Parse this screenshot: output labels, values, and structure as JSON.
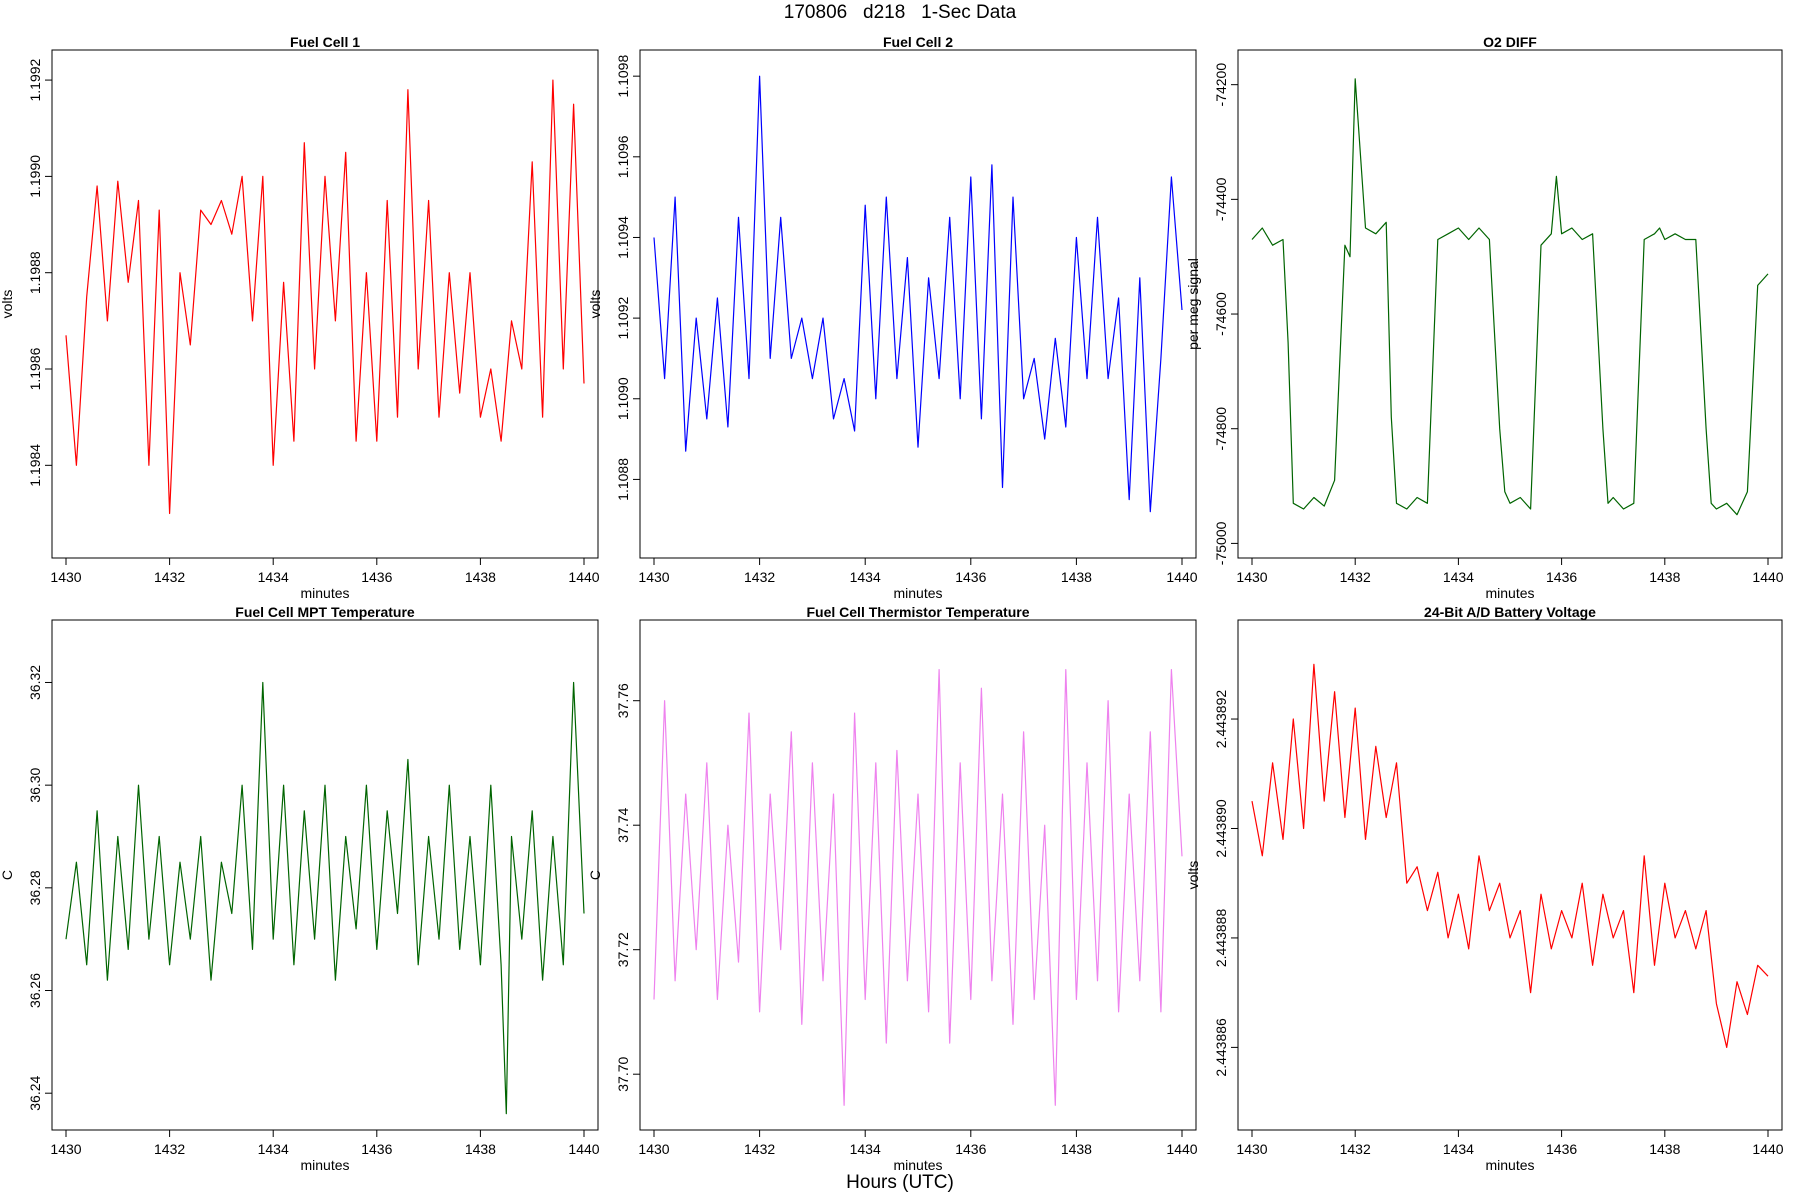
{
  "page": {
    "title": "170806   d218   1-Sec Data",
    "bottom_label": "Hours (UTC)"
  },
  "chart_data": [
    {
      "type": "line",
      "title": "Fuel Cell 1",
      "xlabel": "minutes",
      "ylabel": "volts",
      "color": "#ff0000",
      "xlim": [
        1430,
        1440
      ],
      "ylim": [
        1.19822,
        1.19925
      ],
      "xticks": [
        "1430",
        "1432",
        "1434",
        "1436",
        "1438",
        "1440"
      ],
      "yticks": [
        "1.1984",
        "1.1986",
        "1.1988",
        "1.1990",
        "1.1992"
      ],
      "series": [
        {
          "x": [
            1430.0,
            1430.2,
            1430.4,
            1430.6,
            1430.8,
            1431.0,
            1431.2,
            1431.4,
            1431.6,
            1431.8,
            1432.0,
            1432.2,
            1432.4,
            1432.6,
            1432.8,
            1433.0,
            1433.2,
            1433.4,
            1433.6,
            1433.8,
            1434.0,
            1434.2,
            1434.4,
            1434.6,
            1434.8,
            1435.0,
            1435.2,
            1435.4,
            1435.6,
            1435.8,
            1436.0,
            1436.2,
            1436.4,
            1436.6,
            1436.8,
            1437.0,
            1437.2,
            1437.4,
            1437.6,
            1437.8,
            1438.0,
            1438.2,
            1438.4,
            1438.6,
            1438.8,
            1439.0,
            1439.2,
            1439.4,
            1439.6,
            1439.8,
            1440.0
          ],
          "y": [
            1.19867,
            1.1984,
            1.19875,
            1.19898,
            1.1987,
            1.19899,
            1.19878,
            1.19895,
            1.1984,
            1.19893,
            1.1983,
            1.1988,
            1.19865,
            1.19893,
            1.1989,
            1.19895,
            1.19888,
            1.199,
            1.1987,
            1.199,
            1.1984,
            1.19878,
            1.19845,
            1.19907,
            1.1986,
            1.199,
            1.1987,
            1.19905,
            1.19845,
            1.1988,
            1.19845,
            1.19895,
            1.1985,
            1.19918,
            1.1986,
            1.19895,
            1.1985,
            1.1988,
            1.19855,
            1.1988,
            1.1985,
            1.1986,
            1.19845,
            1.1987,
            1.1986,
            1.19903,
            1.1985,
            1.1992,
            1.1986,
            1.19915,
            1.19857
          ]
        }
      ]
    },
    {
      "type": "line",
      "title": "Fuel Cell 2",
      "xlabel": "minutes",
      "ylabel": "volts",
      "color": "#0000ff",
      "xlim": [
        1430,
        1440
      ],
      "ylim": [
        1.10862,
        1.10985
      ],
      "xticks": [
        "1430",
        "1432",
        "1434",
        "1436",
        "1438",
        "1440"
      ],
      "yticks": [
        "1.1088",
        "1.1090",
        "1.1092",
        "1.1094",
        "1.1096",
        "1.1098"
      ],
      "series": [
        {
          "x": [
            1430.0,
            1430.2,
            1430.4,
            1430.6,
            1430.8,
            1431.0,
            1431.2,
            1431.4,
            1431.6,
            1431.8,
            1432.0,
            1432.2,
            1432.4,
            1432.6,
            1432.8,
            1433.0,
            1433.2,
            1433.4,
            1433.6,
            1433.8,
            1434.0,
            1434.2,
            1434.4,
            1434.6,
            1434.8,
            1435.0,
            1435.2,
            1435.4,
            1435.6,
            1435.8,
            1436.0,
            1436.2,
            1436.4,
            1436.6,
            1436.8,
            1437.0,
            1437.2,
            1437.4,
            1437.6,
            1437.8,
            1438.0,
            1438.2,
            1438.4,
            1438.6,
            1438.8,
            1439.0,
            1439.2,
            1439.4,
            1439.6,
            1439.8,
            1440.0
          ],
          "y": [
            1.1094,
            1.10905,
            1.1095,
            1.10887,
            1.1092,
            1.10895,
            1.10925,
            1.10893,
            1.10945,
            1.10905,
            1.1098,
            1.1091,
            1.10945,
            1.1091,
            1.1092,
            1.10905,
            1.1092,
            1.10895,
            1.10905,
            1.10892,
            1.10948,
            1.109,
            1.1095,
            1.10905,
            1.10935,
            1.10888,
            1.1093,
            1.10905,
            1.10945,
            1.109,
            1.10955,
            1.10895,
            1.10958,
            1.10878,
            1.1095,
            1.109,
            1.1091,
            1.1089,
            1.10915,
            1.10893,
            1.1094,
            1.10905,
            1.10945,
            1.10905,
            1.10925,
            1.10875,
            1.1093,
            1.10872,
            1.1091,
            1.10955,
            1.10922
          ]
        }
      ]
    },
    {
      "type": "line",
      "title": "O2 DIFF",
      "xlabel": "minutes",
      "ylabel": "per meg signal",
      "color": "#006400",
      "xlim": [
        1430,
        1440
      ],
      "ylim": [
        -75015,
        -74150
      ],
      "xticks": [
        "1430",
        "1432",
        "1434",
        "1436",
        "1438",
        "1440"
      ],
      "yticks": [
        "-75000",
        "-74800",
        "-74600",
        "-74400",
        "-74200"
      ],
      "series": [
        {
          "x": [
            1430.0,
            1430.2,
            1430.4,
            1430.6,
            1430.7,
            1430.8,
            1431.0,
            1431.2,
            1431.4,
            1431.6,
            1431.8,
            1431.9,
            1432.0,
            1432.2,
            1432.4,
            1432.6,
            1432.7,
            1432.8,
            1433.0,
            1433.2,
            1433.4,
            1433.6,
            1433.8,
            1434.0,
            1434.2,
            1434.4,
            1434.6,
            1434.8,
            1434.9,
            1435.0,
            1435.2,
            1435.4,
            1435.6,
            1435.8,
            1435.9,
            1436.0,
            1436.2,
            1436.4,
            1436.6,
            1436.8,
            1436.9,
            1437.0,
            1437.2,
            1437.4,
            1437.6,
            1437.8,
            1437.9,
            1438.0,
            1438.2,
            1438.4,
            1438.6,
            1438.8,
            1438.9,
            1439.0,
            1439.2,
            1439.4,
            1439.6,
            1439.8,
            1440.0
          ],
          "y": [
            -74470,
            -74450,
            -74480,
            -74470,
            -74650,
            -74930,
            -74940,
            -74920,
            -74935,
            -74890,
            -74480,
            -74500,
            -74190,
            -74450,
            -74460,
            -74440,
            -74780,
            -74930,
            -74940,
            -74920,
            -74930,
            -74470,
            -74460,
            -74450,
            -74470,
            -74450,
            -74470,
            -74800,
            -74910,
            -74930,
            -74920,
            -74940,
            -74480,
            -74460,
            -74360,
            -74460,
            -74450,
            -74470,
            -74460,
            -74800,
            -74930,
            -74920,
            -74940,
            -74930,
            -74470,
            -74460,
            -74450,
            -74470,
            -74460,
            -74470,
            -74470,
            -74800,
            -74930,
            -74940,
            -74930,
            -74950,
            -74910,
            -74550,
            -74530
          ]
        }
      ]
    },
    {
      "type": "line",
      "title": "Fuel Cell MPT Temperature",
      "xlabel": "minutes",
      "ylabel": "C",
      "color": "#006400",
      "xlim": [
        1430,
        1440
      ],
      "ylim": [
        36.234,
        36.331
      ],
      "xticks": [
        "1430",
        "1432",
        "1434",
        "1436",
        "1438",
        "1440"
      ],
      "yticks": [
        "36.24",
        "36.26",
        "36.28",
        "36.30",
        "36.32"
      ],
      "series": [
        {
          "x": [
            1430.0,
            1430.2,
            1430.4,
            1430.6,
            1430.8,
            1431.0,
            1431.2,
            1431.4,
            1431.6,
            1431.8,
            1432.0,
            1432.2,
            1432.4,
            1432.6,
            1432.8,
            1433.0,
            1433.2,
            1433.4,
            1433.6,
            1433.8,
            1434.0,
            1434.2,
            1434.4,
            1434.6,
            1434.8,
            1435.0,
            1435.2,
            1435.4,
            1435.6,
            1435.8,
            1436.0,
            1436.2,
            1436.4,
            1436.6,
            1436.8,
            1437.0,
            1437.2,
            1437.4,
            1437.6,
            1437.8,
            1438.0,
            1438.2,
            1438.4,
            1438.5,
            1438.6,
            1438.8,
            1439.0,
            1439.2,
            1439.4,
            1439.6,
            1439.8,
            1440.0
          ],
          "y": [
            36.27,
            36.285,
            36.265,
            36.295,
            36.262,
            36.29,
            36.268,
            36.3,
            36.27,
            36.29,
            36.265,
            36.285,
            36.27,
            36.29,
            36.262,
            36.285,
            36.275,
            36.3,
            36.268,
            36.32,
            36.27,
            36.3,
            36.265,
            36.295,
            36.27,
            36.3,
            36.262,
            36.29,
            36.272,
            36.3,
            36.268,
            36.295,
            36.275,
            36.305,
            36.265,
            36.29,
            36.27,
            36.3,
            36.268,
            36.29,
            36.265,
            36.3,
            36.265,
            36.236,
            36.29,
            36.27,
            36.295,
            36.262,
            36.29,
            36.265,
            36.32,
            36.275
          ]
        }
      ]
    },
    {
      "type": "line",
      "title": "Fuel Cell Thermistor Temperature",
      "xlabel": "minutes",
      "ylabel": "C",
      "color": "#ee82ee",
      "xlim": [
        1430,
        1440
      ],
      "ylim": [
        37.692,
        37.772
      ],
      "xticks": [
        "1430",
        "1432",
        "1434",
        "1436",
        "1438",
        "1440"
      ],
      "yticks": [
        "37.70",
        "37.72",
        "37.74",
        "37.76"
      ],
      "series": [
        {
          "x": [
            1430.0,
            1430.2,
            1430.4,
            1430.6,
            1430.8,
            1431.0,
            1431.2,
            1431.4,
            1431.6,
            1431.8,
            1432.0,
            1432.2,
            1432.4,
            1432.6,
            1432.8,
            1433.0,
            1433.2,
            1433.4,
            1433.6,
            1433.8,
            1434.0,
            1434.2,
            1434.4,
            1434.6,
            1434.8,
            1435.0,
            1435.2,
            1435.4,
            1435.6,
            1435.8,
            1436.0,
            1436.2,
            1436.4,
            1436.6,
            1436.8,
            1437.0,
            1437.2,
            1437.4,
            1437.6,
            1437.8,
            1438.0,
            1438.2,
            1438.4,
            1438.6,
            1438.8,
            1439.0,
            1439.2,
            1439.4,
            1439.6,
            1439.8,
            1440.0
          ],
          "y": [
            37.712,
            37.76,
            37.715,
            37.745,
            37.72,
            37.75,
            37.712,
            37.74,
            37.718,
            37.758,
            37.71,
            37.745,
            37.72,
            37.755,
            37.708,
            37.75,
            37.715,
            37.745,
            37.695,
            37.758,
            37.712,
            37.75,
            37.705,
            37.752,
            37.715,
            37.745,
            37.71,
            37.765,
            37.705,
            37.75,
            37.712,
            37.762,
            37.715,
            37.745,
            37.708,
            37.755,
            37.712,
            37.74,
            37.695,
            37.765,
            37.712,
            37.75,
            37.715,
            37.76,
            37.71,
            37.745,
            37.715,
            37.755,
            37.71,
            37.765,
            37.735
          ]
        }
      ]
    },
    {
      "type": "line",
      "title": "24-Bit A/D Battery Voltage",
      "xlabel": "minutes",
      "ylabel": "volts",
      "color": "#ff0000",
      "xlim": [
        1430,
        1440
      ],
      "ylim": [
        2.4438846,
        2.4438937
      ],
      "xticks": [
        "1430",
        "1432",
        "1434",
        "1436",
        "1438",
        "1440"
      ],
      "yticks": [
        "2.443886",
        "2.443888",
        "2.443890",
        "2.443892"
      ],
      "series": [
        {
          "x": [
            1430.0,
            1430.2,
            1430.4,
            1430.6,
            1430.8,
            1431.0,
            1431.2,
            1431.4,
            1431.6,
            1431.8,
            1432.0,
            1432.2,
            1432.4,
            1432.6,
            1432.8,
            1433.0,
            1433.2,
            1433.4,
            1433.6,
            1433.8,
            1434.0,
            1434.2,
            1434.4,
            1434.6,
            1434.8,
            1435.0,
            1435.2,
            1435.4,
            1435.6,
            1435.8,
            1436.0,
            1436.2,
            1436.4,
            1436.6,
            1436.8,
            1437.0,
            1437.2,
            1437.4,
            1437.6,
            1437.8,
            1438.0,
            1438.2,
            1438.4,
            1438.6,
            1438.8,
            1439.0,
            1439.2,
            1439.4,
            1439.6,
            1439.8,
            1440.0
          ],
          "y": [
            2.4438905,
            2.4438895,
            2.4438912,
            2.4438898,
            2.443892,
            2.44389,
            2.443893,
            2.4438905,
            2.4438925,
            2.4438902,
            2.4438922,
            2.4438898,
            2.4438915,
            2.4438902,
            2.4438912,
            2.443889,
            2.4438893,
            2.4438885,
            2.4438892,
            2.443888,
            2.4438888,
            2.4438878,
            2.4438895,
            2.4438885,
            2.443889,
            2.443888,
            2.4438885,
            2.443887,
            2.4438888,
            2.4438878,
            2.4438885,
            2.443888,
            2.443889,
            2.4438875,
            2.4438888,
            2.443888,
            2.4438885,
            2.443887,
            2.4438895,
            2.4438875,
            2.443889,
            2.443888,
            2.4438885,
            2.4438878,
            2.4438885,
            2.4438868,
            2.443886,
            2.4438872,
            2.4438866,
            2.4438875,
            2.4438873
          ]
        }
      ]
    }
  ]
}
